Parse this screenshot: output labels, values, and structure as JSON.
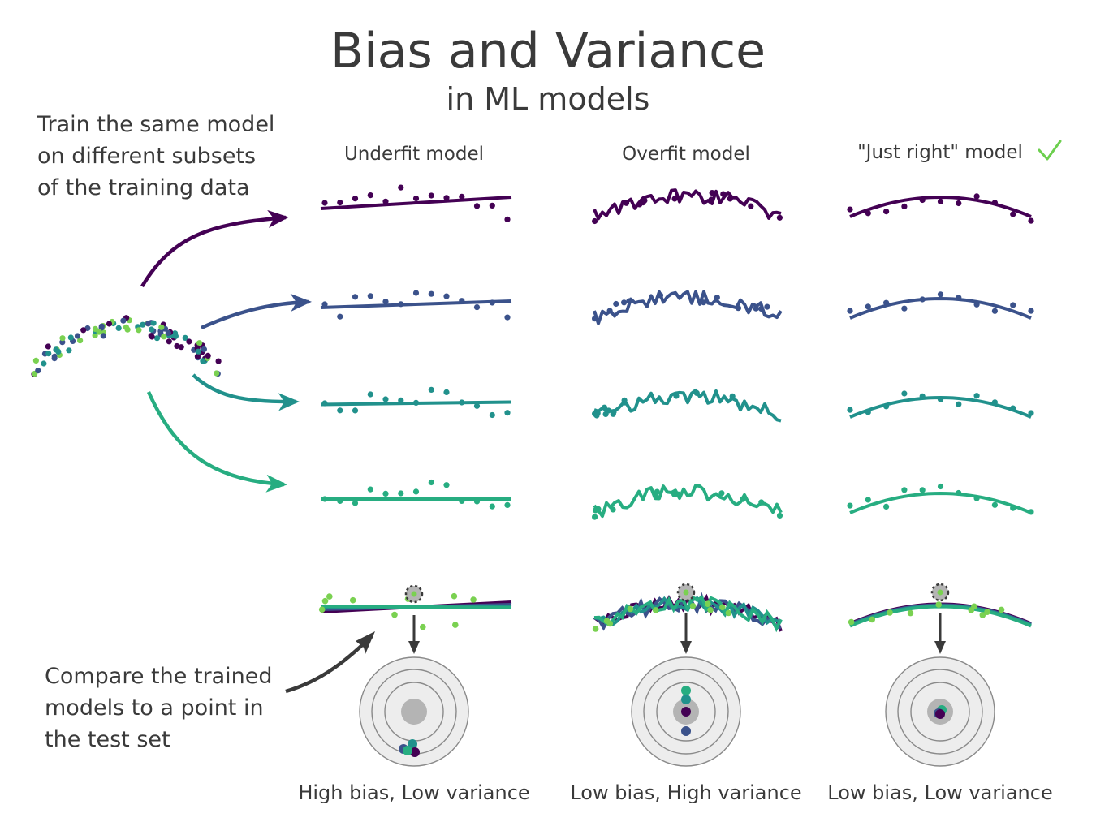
{
  "title": "Bias and Variance",
  "subtitle": "in ML models",
  "note_train": [
    "Train the same model",
    "on different subsets",
    "of the training data"
  ],
  "note_compare": [
    "Compare the trained",
    "models to a point in",
    "the test set"
  ],
  "columns": [
    {
      "heading": "Underfit model",
      "caption": "High bias, Low variance"
    },
    {
      "heading": "Overfit model",
      "caption": "Low bias, High variance"
    },
    {
      "heading": "\"Just right\" model",
      "caption": "Low bias, Low variance"
    }
  ],
  "icons": {
    "check": "check-icon",
    "down_arrow": "arrow-down-icon"
  },
  "colors": {
    "subset_1": "#440154",
    "subset_2": "#3b528b",
    "subset_3": "#21918c",
    "subset_4": "#27ad81",
    "test_point": "#7ad151",
    "text": "#3a3a3a",
    "target_ring": "#ededed",
    "target_center": "#b4b4b4",
    "check": "#6ccf4e"
  }
}
